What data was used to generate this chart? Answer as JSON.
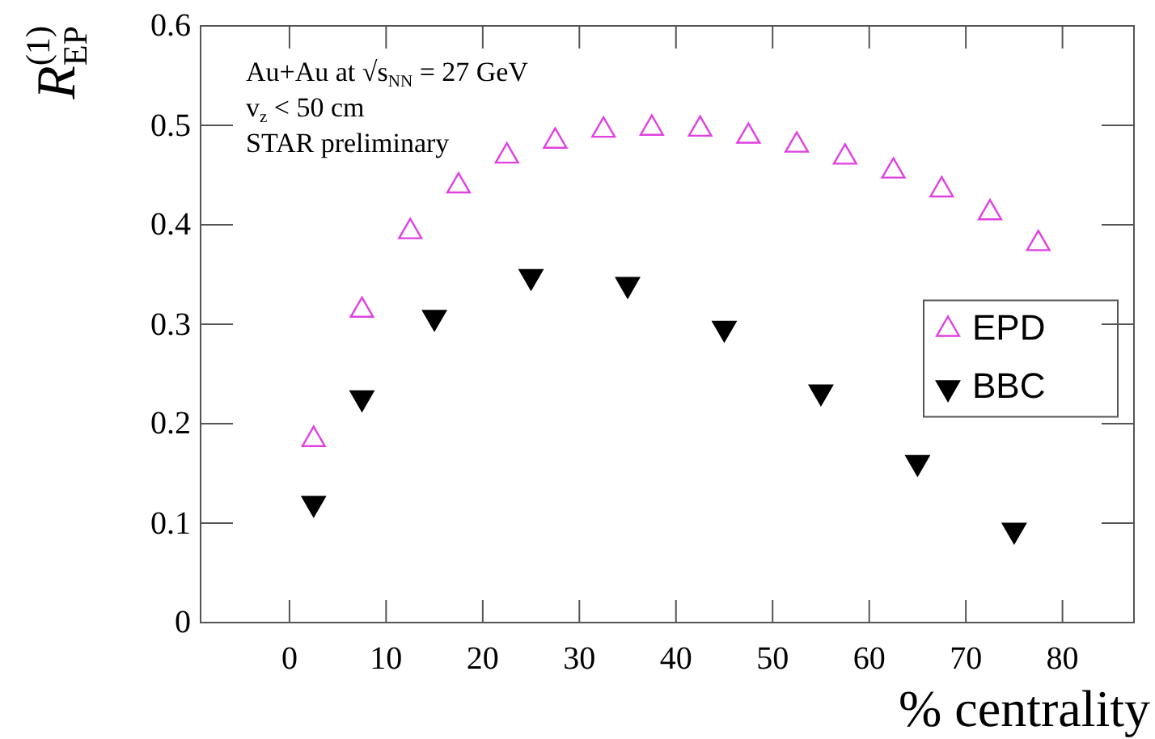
{
  "chart_data": {
    "type": "scatter",
    "xlabel": "% centrality",
    "ylabel": "R$_{EP}$$^{(1)}$",
    "xlim": [
      -9.2,
      87.4
    ],
    "xticks": [
      0,
      10,
      20,
      30,
      40,
      50,
      60,
      70,
      80
    ],
    "ylim": [
      0,
      0.6
    ],
    "yticks": [
      0,
      0.1,
      0.2,
      0.3,
      0.4,
      0.5,
      0.6
    ],
    "legend": "right",
    "marker": "triangle",
    "annotations": [
      "Au+Au at √s$_{NN}$ = 27 GeV",
      "v$_{z}$ < 50 cm",
      "STAR preliminary"
    ],
    "series": [
      {
        "name": "EPD",
        "color": "#e040e0",
        "x": [
          2.5,
          7.5,
          12.5,
          17.5,
          22.5,
          27.5,
          32.5,
          37.5,
          42.5,
          47.5,
          52.5,
          57.5,
          62.5,
          67.5,
          72.5,
          77.5
        ],
        "values": [
          0.184,
          0.314,
          0.393,
          0.439,
          0.469,
          0.484,
          0.495,
          0.497,
          0.496,
          0.489,
          0.48,
          0.468,
          0.454,
          0.435,
          0.412,
          0.381
        ]
      },
      {
        "name": "BBC",
        "color": "#000000",
        "x": [
          2.5,
          7.5,
          15,
          25,
          35,
          45,
          55,
          65,
          75
        ],
        "values": [
          0.12,
          0.226,
          0.307,
          0.348,
          0.34,
          0.296,
          0.232,
          0.161,
          0.093
        ]
      }
    ]
  }
}
